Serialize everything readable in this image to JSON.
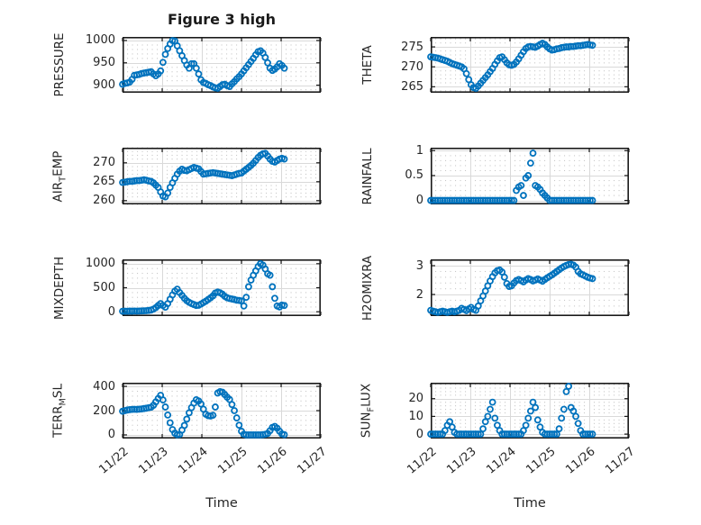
{
  "figure_title": "Figure 3 high",
  "style": {
    "marker_color": "#0072BD",
    "frame_color": "#1a1a1a",
    "text_color": "#262626",
    "major_grid_color": "#d9d9d9",
    "minor_dot_color": "#c8c8c8",
    "background": "#ffffff"
  },
  "chart_data": {
    "type": "scatter",
    "figure_title": "Figure 3 high",
    "marker": "open-circle",
    "marker_color": "#0072BD",
    "grid": "major-solid, minor-dotted",
    "layout": "4 rows x 2 columns",
    "xlabel": "Time",
    "xlim_days": [
      0,
      5
    ],
    "x_tick_positions_days": [
      0,
      1,
      2,
      3,
      4,
      5
    ],
    "x_tick_labels": [
      "11/22",
      "11/23",
      "11/24",
      "11/25",
      "11/26",
      "11/27"
    ],
    "x_tick_rotation_deg": -40,
    "sample_step_days": 0.06,
    "subplots": [
      {
        "name": "PRESSURE",
        "label_parts": [
          {
            "t": "PRESSURE",
            "sub": false
          }
        ],
        "yticks": [
          900,
          950,
          1000
        ],
        "ylim": [
          883,
          1008
        ],
        "x0": 0,
        "values": [
          902,
          904,
          905,
          907,
          913,
          922,
          923,
          924,
          926,
          927,
          928,
          929,
          930,
          925,
          921,
          925,
          932,
          951,
          969,
          982,
          992,
          1000,
          999,
          988,
          977,
          966,
          955,
          945,
          938,
          948,
          948,
          938,
          925,
          912,
          906,
          904,
          901,
          899,
          896,
          894,
          893,
          897,
          901,
          902,
          899,
          897,
          903,
          908,
          914,
          919,
          925,
          932,
          939,
          946,
          953,
          960,
          968,
          975,
          977,
          972,
          962,
          950,
          938,
          933,
          936,
          941,
          948,
          944,
          938
        ]
      },
      {
        "name": "THETA",
        "label_parts": [
          {
            "t": "THETA",
            "sub": false
          }
        ],
        "yticks": [
          265,
          270,
          275
        ],
        "ylim": [
          263.5,
          277.5
        ],
        "x0": 0,
        "values": [
          272.5,
          272.4,
          272.3,
          272.2,
          272.0,
          271.8,
          271.6,
          271.4,
          271.1,
          270.8,
          270.6,
          270.4,
          270.2,
          270.0,
          269.5,
          268.3,
          266.8,
          265.5,
          264.8,
          264.6,
          265.2,
          265.9,
          266.6,
          267.3,
          268.0,
          268.8,
          269.6,
          270.6,
          271.5,
          272.3,
          272.5,
          271.8,
          271.0,
          270.5,
          270.4,
          270.6,
          271.2,
          272.0,
          272.9,
          273.8,
          274.6,
          275.0,
          275.1,
          275.0,
          274.9,
          275.2,
          275.6,
          275.9,
          275.6,
          275.0,
          274.5,
          274.2,
          274.3,
          274.5,
          274.6,
          274.8,
          274.9,
          275.0,
          275.0,
          275.1,
          275.1,
          275.2,
          275.3,
          275.3,
          275.4,
          275.5,
          275.6,
          275.5,
          275.4
        ]
      },
      {
        "name": "AIR_TEMP",
        "label_parts": [
          {
            "t": "AIR",
            "sub": false
          },
          {
            "t": "T",
            "sub": true
          },
          {
            "t": "EMP",
            "sub": false
          }
        ],
        "yticks": [
          260,
          265,
          270
        ],
        "ylim": [
          259,
          274
        ],
        "x0": 0,
        "values": [
          264.8,
          264.9,
          265.0,
          265.1,
          265.1,
          265.2,
          265.3,
          265.3,
          265.4,
          265.5,
          265.4,
          265.2,
          265.1,
          264.7,
          264.1,
          263.5,
          262.3,
          261.2,
          261.0,
          262.0,
          263.5,
          264.7,
          265.9,
          267.0,
          267.8,
          268.3,
          268.0,
          267.9,
          268.2,
          268.5,
          268.8,
          268.6,
          268.4,
          267.7,
          267.0,
          267.1,
          267.2,
          267.3,
          267.4,
          267.3,
          267.2,
          267.1,
          267.0,
          266.9,
          266.8,
          266.7,
          266.6,
          266.8,
          267.0,
          267.2,
          267.3,
          267.8,
          268.3,
          268.8,
          269.3,
          269.9,
          270.6,
          271.4,
          272.0,
          272.4,
          272.5,
          271.8,
          271.0,
          270.4,
          270.2,
          270.6,
          271.0,
          271.2,
          271.0
        ]
      },
      {
        "name": "RAINFALL",
        "label_parts": [
          {
            "t": "RAINFALL",
            "sub": false
          }
        ],
        "yticks": [
          0,
          0.5,
          1
        ],
        "ylim": [
          -0.08,
          1.06
        ],
        "x0": 0,
        "values": [
          0,
          0,
          0,
          0,
          0,
          0,
          0,
          0,
          0,
          0,
          0,
          0,
          0,
          0,
          0,
          0,
          0,
          0,
          0,
          0,
          0,
          0,
          0,
          0,
          0,
          0,
          0,
          0,
          0,
          0,
          0,
          0,
          0,
          0,
          0,
          0,
          0.2,
          0.27,
          0.3,
          0.1,
          0.45,
          0.5,
          0.75,
          0.95,
          0.3,
          0.27,
          0.22,
          0.15,
          0.1,
          0.05,
          0,
          0,
          0,
          0,
          0,
          0,
          0,
          0,
          0,
          0,
          0,
          0,
          0,
          0,
          0,
          0,
          0,
          0,
          0
        ]
      },
      {
        "name": "MIXDEPTH",
        "label_parts": [
          {
            "t": "MIXDEPTH",
            "sub": false
          }
        ],
        "yticks": [
          0,
          500,
          1000
        ],
        "ylim": [
          -90,
          1090
        ],
        "x0": 0,
        "values": [
          10,
          12,
          10,
          14,
          12,
          15,
          13,
          16,
          18,
          20,
          22,
          28,
          35,
          55,
          85,
          130,
          170,
          130,
          95,
          170,
          260,
          350,
          430,
          470,
          400,
          340,
          280,
          230,
          195,
          170,
          150,
          130,
          135,
          160,
          190,
          220,
          255,
          290,
          330,
          390,
          410,
          395,
          365,
          320,
          290,
          275,
          265,
          255,
          240,
          235,
          225,
          120,
          300,
          520,
          660,
          760,
          850,
          940,
          1000,
          970,
          890,
          790,
          760,
          520,
          280,
          120,
          100,
          140,
          130
        ]
      },
      {
        "name": "H2OMIXRA",
        "label_parts": [
          {
            "t": "H2OMIXRA",
            "sub": false
          }
        ],
        "yticks": [
          2,
          3
        ],
        "ylim": [
          1.25,
          3.22
        ],
        "x0": 0,
        "values": [
          1.45,
          1.42,
          1.4,
          1.38,
          1.4,
          1.42,
          1.4,
          1.38,
          1.4,
          1.42,
          1.4,
          1.42,
          1.45,
          1.52,
          1.48,
          1.44,
          1.5,
          1.55,
          1.48,
          1.45,
          1.6,
          1.78,
          1.95,
          2.12,
          2.3,
          2.47,
          2.62,
          2.75,
          2.83,
          2.85,
          2.78,
          2.6,
          2.38,
          2.28,
          2.3,
          2.4,
          2.48,
          2.52,
          2.48,
          2.44,
          2.5,
          2.55,
          2.52,
          2.47,
          2.5,
          2.54,
          2.5,
          2.46,
          2.52,
          2.58,
          2.63,
          2.68,
          2.74,
          2.8,
          2.86,
          2.92,
          2.97,
          3.01,
          3.04,
          3.05,
          3.02,
          2.95,
          2.8,
          2.72,
          2.68,
          2.64,
          2.6,
          2.57,
          2.55
        ]
      },
      {
        "name": "TERR_MSL",
        "label_parts": [
          {
            "t": "TERR",
            "sub": false
          },
          {
            "t": "M",
            "sub": true
          },
          {
            "t": "SL",
            "sub": false
          }
        ],
        "yticks": [
          0,
          200,
          400
        ],
        "ylim": [
          -30,
          430
        ],
        "x0": 0,
        "values": [
          195,
          200,
          205,
          208,
          210,
          211,
          210,
          212,
          214,
          217,
          220,
          224,
          228,
          244,
          272,
          300,
          326,
          288,
          230,
          164,
          100,
          44,
          14,
          1,
          3,
          40,
          78,
          130,
          182,
          225,
          262,
          290,
          280,
          255,
          212,
          170,
          158,
          156,
          162,
          230,
          345,
          357,
          352,
          332,
          310,
          292,
          250,
          200,
          140,
          80,
          30,
          5,
          0,
          0,
          0,
          0,
          0,
          0,
          0,
          2,
          5,
          12,
          35,
          62,
          70,
          55,
          30,
          8,
          2
        ]
      },
      {
        "name": "SUN_FLUX",
        "label_parts": [
          {
            "t": "SUN",
            "sub": false
          },
          {
            "t": "F",
            "sub": true
          },
          {
            "t": "LUX",
            "sub": false
          }
        ],
        "yticks": [
          0,
          10,
          20
        ],
        "ylim": [
          -2.5,
          29
        ],
        "x0": 0,
        "values": [
          0,
          0,
          0,
          0,
          0,
          0,
          2,
          5,
          7,
          4,
          1,
          0,
          0,
          0,
          0,
          0,
          0,
          0,
          0,
          0,
          0,
          0,
          3,
          7,
          10,
          14,
          18,
          9,
          5,
          2,
          0,
          0,
          0,
          0,
          0,
          0,
          0,
          0,
          0,
          2,
          5,
          9,
          13,
          18,
          15,
          8,
          4,
          1,
          0,
          0,
          0,
          0,
          0,
          0,
          3,
          9,
          14,
          24,
          27,
          15,
          13,
          10,
          6,
          2,
          0,
          0,
          0,
          0,
          0
        ]
      }
    ]
  }
}
